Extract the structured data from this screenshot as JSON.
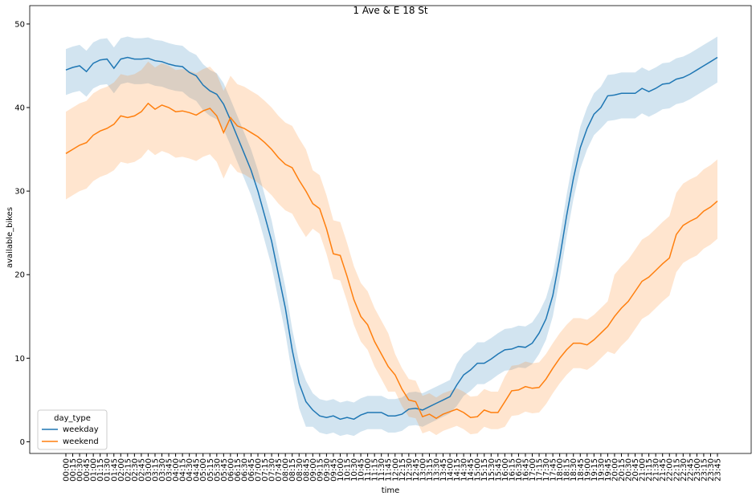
{
  "chart_data": {
    "type": "line",
    "title": "1 Ave & E 18 St",
    "x_label": "time",
    "y_label": "available_bikes",
    "legend_title": "day_type",
    "legend": "lower left",
    "categories": [
      "00:00",
      "00:15",
      "00:30",
      "00:45",
      "01:00",
      "01:15",
      "01:30",
      "01:45",
      "02:00",
      "02:15",
      "02:30",
      "02:45",
      "03:00",
      "03:15",
      "03:30",
      "03:45",
      "04:00",
      "04:15",
      "04:30",
      "04:45",
      "05:00",
      "05:15",
      "05:30",
      "05:45",
      "06:00",
      "06:15",
      "06:30",
      "06:45",
      "07:00",
      "07:15",
      "07:30",
      "07:45",
      "08:00",
      "08:15",
      "08:30",
      "08:45",
      "09:00",
      "09:15",
      "09:30",
      "09:45",
      "10:00",
      "10:15",
      "10:30",
      "10:45",
      "11:00",
      "11:15",
      "11:30",
      "11:45",
      "12:00",
      "12:15",
      "12:30",
      "12:45",
      "13:00",
      "13:15",
      "13:30",
      "13:45",
      "14:00",
      "14:15",
      "14:30",
      "14:45",
      "15:00",
      "15:15",
      "15:30",
      "15:45",
      "16:00",
      "16:15",
      "16:30",
      "16:45",
      "17:00",
      "17:15",
      "17:30",
      "17:45",
      "18:00",
      "18:15",
      "18:30",
      "18:45",
      "19:00",
      "19:15",
      "19:30",
      "19:45",
      "20:00",
      "20:15",
      "20:30",
      "20:45",
      "21:00",
      "21:15",
      "21:30",
      "21:45",
      "22:00",
      "22:15",
      "22:30",
      "22:45",
      "23:00",
      "23:15",
      "23:30",
      "23:45"
    ],
    "series": [
      {
        "name": "weekday",
        "color": "#1f77b4",
        "values": [
          44.5,
          44.8,
          45.0,
          44.3,
          45.3,
          45.7,
          45.8,
          44.7,
          45.8,
          46.0,
          45.8,
          45.8,
          45.9,
          45.6,
          45.5,
          45.2,
          45.0,
          44.9,
          44.2,
          43.8,
          42.7,
          42.0,
          41.6,
          40.4,
          38.5,
          36.5,
          34.5,
          32.5,
          30.0,
          27.0,
          24.0,
          20.0,
          16.0,
          11.0,
          7.0,
          4.8,
          3.8,
          3.1,
          2.9,
          3.1,
          2.7,
          2.9,
          2.7,
          3.2,
          3.5,
          3.5,
          3.5,
          3.1,
          3.1,
          3.3,
          3.9,
          4.0,
          3.8,
          4.2,
          4.6,
          5.0,
          5.4,
          6.8,
          8.0,
          8.6,
          9.4,
          9.4,
          9.9,
          10.5,
          11.0,
          11.1,
          11.4,
          11.3,
          11.8,
          13.0,
          14.7,
          17.5,
          22.0,
          27.0,
          31.5,
          35.2,
          37.5,
          39.2,
          40.0,
          41.4,
          41.5,
          41.7,
          41.7,
          41.7,
          42.3,
          41.9,
          42.3,
          42.8,
          42.9,
          43.4,
          43.6,
          44.0,
          44.5,
          45.0,
          45.5,
          46.0
        ],
        "lower": [
          41.5,
          41.8,
          42.0,
          41.3,
          42.3,
          42.7,
          42.8,
          41.7,
          42.8,
          43.0,
          42.8,
          42.8,
          42.9,
          42.6,
          42.5,
          42.2,
          42.0,
          41.9,
          41.2,
          40.8,
          39.7,
          39.0,
          38.6,
          37.4,
          35.5,
          33.5,
          31.5,
          29.5,
          27.0,
          24.0,
          21.0,
          17.0,
          13.0,
          8.0,
          4.0,
          1.8,
          1.8,
          1.1,
          0.9,
          1.1,
          0.7,
          0.9,
          0.7,
          1.2,
          1.5,
          1.5,
          1.5,
          1.1,
          1.1,
          1.3,
          1.9,
          2.0,
          1.8,
          2.2,
          2.6,
          3.0,
          3.4,
          4.3,
          5.5,
          6.1,
          6.9,
          6.9,
          7.4,
          8.0,
          8.5,
          8.6,
          8.9,
          8.8,
          9.3,
          10.5,
          12.2,
          15.0,
          19.5,
          24.5,
          29.0,
          32.7,
          35.0,
          36.7,
          37.5,
          38.4,
          38.5,
          38.7,
          38.7,
          38.7,
          39.3,
          38.9,
          39.3,
          39.8,
          39.9,
          40.4,
          40.6,
          41.0,
          41.5,
          42.0,
          42.5,
          43.0
        ],
        "upper": [
          47.0,
          47.3,
          47.5,
          46.8,
          47.8,
          48.2,
          48.3,
          47.2,
          48.3,
          48.5,
          48.3,
          48.3,
          48.4,
          48.1,
          48.0,
          47.7,
          47.5,
          47.4,
          46.7,
          46.3,
          45.2,
          44.5,
          44.1,
          42.9,
          41.0,
          39.0,
          37.0,
          35.0,
          32.5,
          29.5,
          26.5,
          22.5,
          18.5,
          13.5,
          9.5,
          7.3,
          5.8,
          5.1,
          4.9,
          5.1,
          4.7,
          4.9,
          4.7,
          5.2,
          5.5,
          5.5,
          5.5,
          5.1,
          5.1,
          5.3,
          5.9,
          6.0,
          5.8,
          6.2,
          6.6,
          7.0,
          7.4,
          9.3,
          10.5,
          11.1,
          11.9,
          11.9,
          12.4,
          13.0,
          13.5,
          13.6,
          13.9,
          13.8,
          14.3,
          15.5,
          17.2,
          20.0,
          24.5,
          29.5,
          34.0,
          37.7,
          40.0,
          41.7,
          42.5,
          43.9,
          44.0,
          44.2,
          44.2,
          44.2,
          44.8,
          44.4,
          44.8,
          45.3,
          45.4,
          45.9,
          46.1,
          46.5,
          47.0,
          47.5,
          48.0,
          48.5
        ]
      },
      {
        "name": "weekend",
        "color": "#ff7f0e",
        "values": [
          34.5,
          35.0,
          35.5,
          35.8,
          36.7,
          37.2,
          37.5,
          38.0,
          39.0,
          38.8,
          39.0,
          39.5,
          40.5,
          39.8,
          40.3,
          40.0,
          39.5,
          39.6,
          39.4,
          39.1,
          39.6,
          39.9,
          39.0,
          37.0,
          38.8,
          37.8,
          37.5,
          37.0,
          36.5,
          35.8,
          35.0,
          34.0,
          33.2,
          32.8,
          31.3,
          30.0,
          28.5,
          27.9,
          25.5,
          22.5,
          22.3,
          19.8,
          17.0,
          15.0,
          14.0,
          12.0,
          10.5,
          9.0,
          8.0,
          6.3,
          5.0,
          4.8,
          3.0,
          3.3,
          2.8,
          3.3,
          3.6,
          3.9,
          3.5,
          2.9,
          3.0,
          3.8,
          3.5,
          3.5,
          4.8,
          6.1,
          6.2,
          6.6,
          6.4,
          6.5,
          7.5,
          8.8,
          10.0,
          11.0,
          11.8,
          11.8,
          11.6,
          12.2,
          13.0,
          13.8,
          15.0,
          16.0,
          16.8,
          18.0,
          19.2,
          19.7,
          20.5,
          21.3,
          22.0,
          24.8,
          25.9,
          26.4,
          26.8,
          27.6,
          28.1,
          28.8
        ],
        "lower": [
          29.0,
          29.5,
          30.0,
          30.3,
          31.2,
          31.7,
          32.0,
          32.5,
          33.5,
          33.3,
          33.5,
          34.0,
          35.0,
          34.3,
          34.8,
          34.5,
          34.0,
          34.1,
          33.9,
          33.6,
          34.1,
          34.4,
          33.5,
          31.5,
          33.3,
          32.3,
          32.0,
          31.5,
          31.0,
          30.3,
          29.5,
          28.5,
          27.7,
          27.3,
          25.8,
          24.5,
          25.5,
          24.9,
          22.5,
          19.5,
          19.3,
          16.8,
          14.0,
          12.0,
          11.0,
          9.0,
          7.5,
          6.0,
          6.0,
          4.3,
          3.0,
          2.8,
          1.0,
          1.3,
          0.8,
          1.3,
          1.6,
          1.9,
          1.5,
          0.9,
          1.0,
          1.8,
          1.5,
          1.5,
          1.8,
          3.1,
          3.2,
          3.6,
          3.4,
          3.5,
          4.5,
          5.8,
          7.0,
          8.0,
          8.8,
          8.8,
          8.6,
          9.2,
          10.0,
          10.8,
          10.5,
          11.5,
          12.3,
          13.5,
          14.7,
          15.2,
          16.0,
          16.8,
          17.5,
          20.3,
          21.4,
          21.9,
          22.3,
          23.1,
          23.6,
          24.3
        ],
        "upper": [
          39.5,
          40.0,
          40.5,
          40.8,
          41.7,
          42.2,
          42.5,
          43.0,
          44.0,
          43.8,
          44.0,
          44.5,
          45.5,
          44.8,
          45.3,
          45.0,
          44.5,
          44.6,
          44.4,
          44.1,
          44.6,
          44.9,
          44.0,
          42.0,
          43.8,
          42.8,
          42.5,
          42.0,
          41.5,
          40.8,
          40.0,
          39.0,
          38.2,
          37.8,
          36.3,
          35.0,
          32.5,
          31.9,
          29.5,
          26.5,
          26.3,
          23.8,
          21.0,
          19.0,
          18.0,
          16.0,
          14.5,
          13.0,
          10.5,
          8.8,
          7.5,
          7.3,
          5.5,
          5.8,
          5.3,
          5.8,
          6.1,
          6.4,
          6.0,
          5.4,
          5.5,
          6.3,
          6.0,
          6.0,
          7.8,
          9.1,
          9.2,
          9.6,
          9.4,
          9.5,
          10.5,
          11.8,
          13.0,
          14.0,
          14.8,
          14.8,
          14.6,
          15.2,
          16.0,
          16.8,
          20.0,
          21.0,
          21.8,
          23.0,
          24.2,
          24.7,
          25.5,
          26.3,
          27.0,
          29.8,
          30.9,
          31.4,
          31.8,
          32.6,
          33.1,
          33.8
        ]
      }
    ],
    "ylim": [
      -1.4,
      52.2
    ],
    "yticks": [
      0,
      10,
      20,
      30,
      40,
      50
    ],
    "grid": false
  }
}
